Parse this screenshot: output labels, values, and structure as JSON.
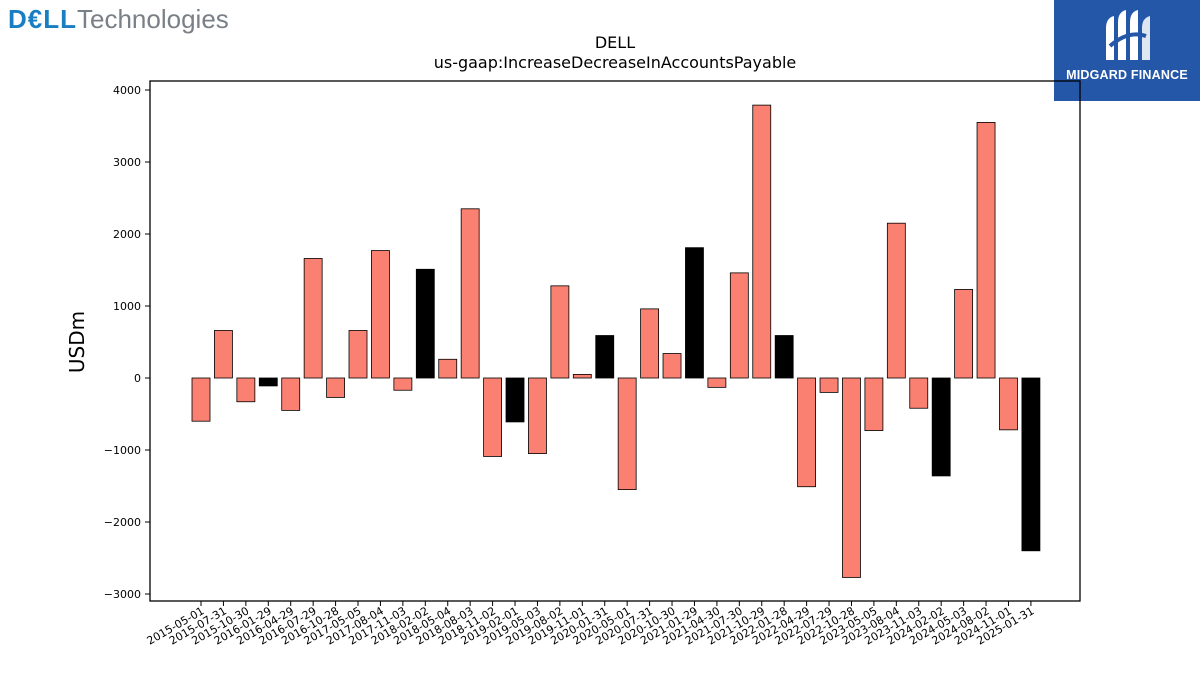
{
  "brand": {
    "dell": "D€LL",
    "technologies": "Technologies"
  },
  "midgard": {
    "name": "MIDGARD FINANCE"
  },
  "colors": {
    "positive": "#fa8072",
    "negative_highlight": "#000000",
    "bar_edge": "#000000",
    "midgard_bg": "#2457a8",
    "dell_blue": "#1a7fc2"
  },
  "chart_data": {
    "type": "bar",
    "title": "DELL",
    "subtitle": "us-gaap:IncreaseDecreaseInAccountsPayable",
    "ylabel": "USDm",
    "xlabel": "",
    "ylim": [
      -3100,
      4150
    ],
    "yticks": [
      -3000,
      -2000,
      -1000,
      0,
      1000,
      2000,
      3000,
      4000
    ],
    "ytick_labels": [
      "−3000",
      "−2000",
      "−1000",
      "0",
      "1000",
      "2000",
      "3000",
      "4000"
    ],
    "grid": false,
    "categories": [
      "2015-05-01",
      "2015-07-31",
      "2015-10-30",
      "2016-01-29",
      "2016-04-29",
      "2016-07-29",
      "2016-10-28",
      "2017-05-05",
      "2017-08-04",
      "2017-11-03",
      "2018-02-02",
      "2018-05-04",
      "2018-08-03",
      "2018-11-02",
      "2019-02-01",
      "2019-05-03",
      "2019-08-02",
      "2019-11-01",
      "2020-01-31",
      "2020-05-01",
      "2020-07-31",
      "2020-10-30",
      "2021-01-29",
      "2021-04-30",
      "2021-07-30",
      "2021-10-29",
      "2022-01-28",
      "2022-04-29",
      "2022-07-29",
      "2022-10-28",
      "2023-05-05",
      "2023-08-04",
      "2023-11-03",
      "2024-02-02",
      "2024-05-03",
      "2024-08-02",
      "2024-11-01",
      "2025-01-31"
    ],
    "values": [
      -600,
      660,
      -330,
      -110,
      -450,
      1660,
      -270,
      660,
      1770,
      -170,
      1510,
      260,
      2350,
      -1090,
      -610,
      -1050,
      1280,
      50,
      590,
      -1550,
      960,
      340,
      1810,
      -130,
      1460,
      3790,
      590,
      -1510,
      -200,
      -2770,
      -730,
      2150,
      -420,
      -1360,
      1230,
      3550,
      -720,
      -2400
    ],
    "highlighted": [
      false,
      false,
      false,
      true,
      false,
      false,
      false,
      false,
      false,
      false,
      true,
      false,
      false,
      false,
      true,
      false,
      false,
      false,
      true,
      false,
      false,
      false,
      true,
      false,
      false,
      false,
      true,
      false,
      false,
      false,
      false,
      false,
      false,
      true,
      false,
      false,
      false,
      true
    ]
  }
}
